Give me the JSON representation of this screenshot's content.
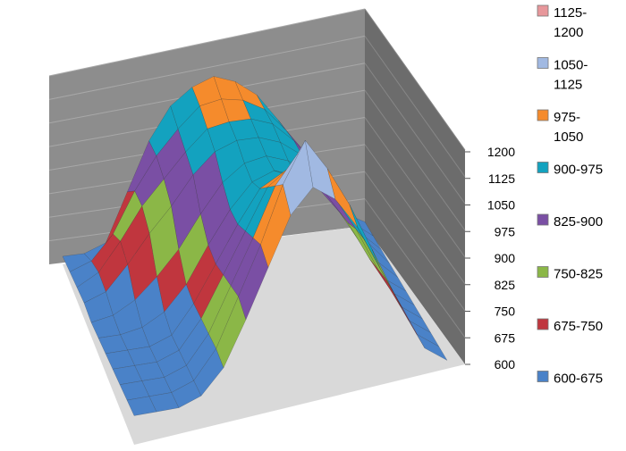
{
  "chart_data": {
    "type": "surface-3d",
    "title": "",
    "zlim": [
      600,
      1200
    ],
    "z_ticks": [
      "600",
      "675",
      "750",
      "825",
      "900",
      "975",
      "1050",
      "1125",
      "1200"
    ],
    "legend_placement": "right",
    "bands": [
      {
        "name": "1125-\n1200",
        "color": "#e7979b"
      },
      {
        "name": "1050-\n1125",
        "color": "#a1b9e2"
      },
      {
        "name": "975-\n1050",
        "color": "#f58b2c"
      },
      {
        "name": "900-975",
        "color": "#13a2bf"
      },
      {
        "name": "825-900",
        "color": "#7a4fa4"
      },
      {
        "name": "750-825",
        "color": "#8bb747"
      },
      {
        "name": "675-750",
        "color": "#c0363e"
      },
      {
        "name": "600-675",
        "color": "#4a82c8"
      }
    ],
    "grid": {
      "cols": 15,
      "rows": 11,
      "z": [
        [
          620,
          620,
          640,
          760,
          880,
          960,
          1000,
          1020,
          1000,
          960,
          890,
          810,
          720,
          640,
          610
        ],
        [
          620,
          640,
          700,
          800,
          880,
          940,
          990,
          1000,
          990,
          960,
          900,
          830,
          740,
          650,
          610
        ],
        [
          620,
          650,
          720,
          800,
          860,
          920,
          970,
          980,
          980,
          960,
          910,
          840,
          760,
          660,
          610
        ],
        [
          620,
          640,
          700,
          770,
          830,
          900,
          950,
          970,
          970,
          950,
          910,
          850,
          770,
          670,
          610
        ],
        [
          610,
          620,
          650,
          700,
          760,
          840,
          910,
          950,
          960,
          940,
          900,
          840,
          760,
          660,
          610
        ],
        [
          610,
          610,
          620,
          650,
          710,
          800,
          880,
          940,
          960,
          940,
          900,
          830,
          740,
          650,
          610
        ],
        [
          610,
          610,
          610,
          630,
          700,
          790,
          880,
          960,
          990,
          970,
          920,
          840,
          740,
          650,
          610
        ],
        [
          610,
          610,
          610,
          630,
          700,
          800,
          900,
          1000,
          1040,
          1010,
          950,
          860,
          750,
          650,
          610
        ],
        [
          610,
          610,
          610,
          630,
          700,
          810,
          920,
          1040,
          1110,
          1060,
          980,
          870,
          760,
          650,
          610
        ],
        [
          610,
          610,
          610,
          630,
          700,
          820,
          940,
          1080,
          1180,
          1100,
          1000,
          880,
          760,
          650,
          610
        ],
        [
          610,
          610,
          610,
          630,
          690,
          800,
          920,
          1040,
          1100,
          1060,
          980,
          870,
          760,
          650,
          610
        ]
      ]
    }
  }
}
